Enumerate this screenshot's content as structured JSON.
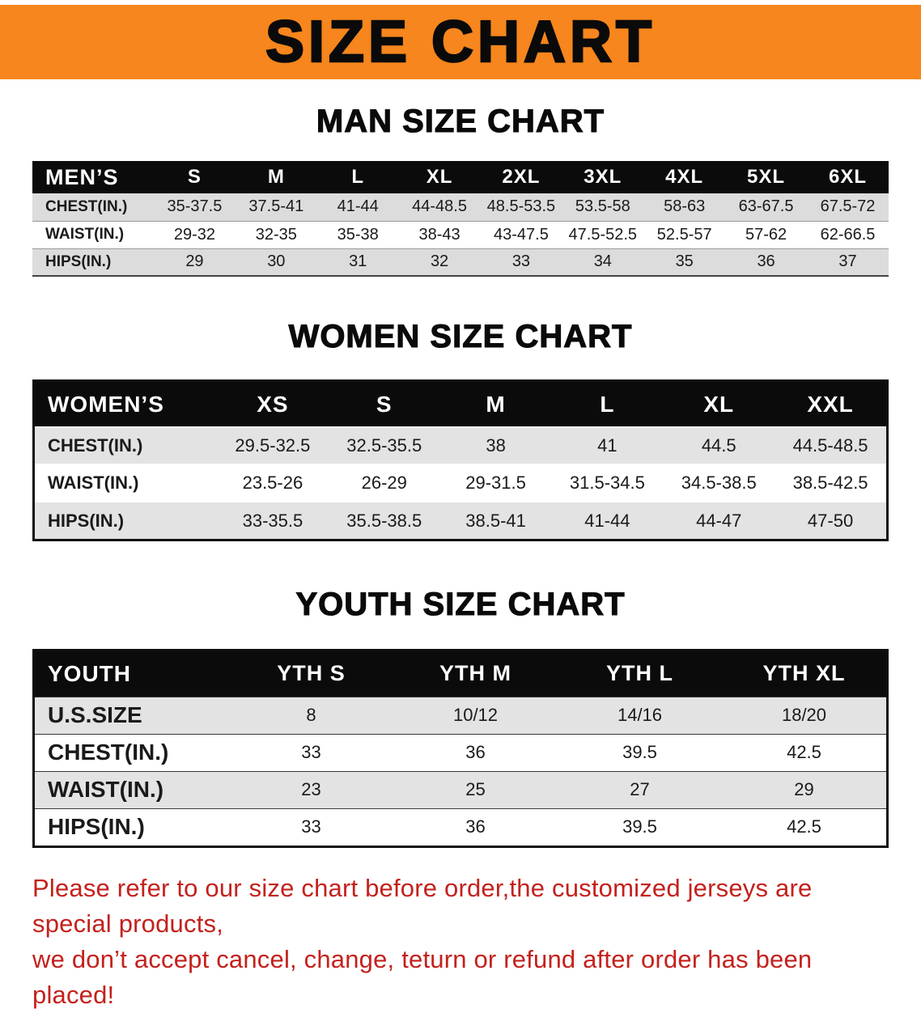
{
  "banner": {
    "title": "SIZE CHART",
    "bg_color": "#F6861D",
    "text_color": "#0A0A0A"
  },
  "sections": [
    {
      "heading": "MAN SIZE CHART",
      "table": {
        "name": "mens",
        "header_label": "MEN’S",
        "columns": [
          "S",
          "M",
          "L",
          "XL",
          "2XL",
          "3XL",
          "4XL",
          "5XL",
          "6XL"
        ],
        "rows": [
          {
            "label": "CHEST(IN.)",
            "values": [
              "35-37.5",
              "37.5-41",
              "41-44",
              "44-48.5",
              "48.5-53.5",
              "53.5-58",
              "58-63",
              "63-67.5",
              "67.5-72"
            ]
          },
          {
            "label": "WAIST(IN.)",
            "values": [
              "29-32",
              "32-35",
              "35-38",
              "38-43",
              "43-47.5",
              "47.5-52.5",
              "52.5-57",
              "57-62",
              "62-66.5"
            ]
          },
          {
            "label": "HIPS(IN.)",
            "values": [
              "29",
              "30",
              "31",
              "32",
              "33",
              "34",
              "35",
              "36",
              "37"
            ]
          }
        ]
      }
    },
    {
      "heading": "WOMEN SIZE CHART",
      "table": {
        "name": "womens",
        "header_label": "WOMEN’S",
        "columns": [
          "XS",
          "S",
          "M",
          "L",
          "XL",
          "XXL"
        ],
        "rows": [
          {
            "label": "CHEST(IN.)",
            "values": [
              "29.5-32.5",
              "32.5-35.5",
              "38",
              "41",
              "44.5",
              "44.5-48.5"
            ]
          },
          {
            "label": "WAIST(IN.)",
            "values": [
              "23.5-26",
              "26-29",
              "29-31.5",
              "31.5-34.5",
              "34.5-38.5",
              "38.5-42.5"
            ]
          },
          {
            "label": "HIPS(IN.)",
            "values": [
              "33-35.5",
              "35.5-38.5",
              "38.5-41",
              "41-44",
              "44-47",
              "47-50"
            ]
          }
        ]
      }
    },
    {
      "heading": "YOUTH SIZE CHART",
      "table": {
        "name": "youth",
        "header_label": "YOUTH",
        "columns": [
          "YTH S",
          "YTH M",
          "YTH L",
          "YTH XL"
        ],
        "rows": [
          {
            "label": "U.S.SIZE",
            "values": [
              "8",
              "10/12",
              "14/16",
              "18/20"
            ]
          },
          {
            "label": "CHEST(IN.)",
            "values": [
              "33",
              "36",
              "39.5",
              "42.5"
            ]
          },
          {
            "label": "WAIST(IN.)",
            "values": [
              "23",
              "25",
              "27",
              "29"
            ]
          },
          {
            "label": "HIPS(IN.)",
            "values": [
              "33",
              "36",
              "39.5",
              "42.5"
            ]
          }
        ]
      }
    }
  ],
  "footer": {
    "lines": [
      "Please refer to our size chart before order,the customized jerseys are special products,",
      "we don’t accept cancel, change, teturn or refund after order has been placed!"
    ],
    "text_color": "#C4211C"
  }
}
